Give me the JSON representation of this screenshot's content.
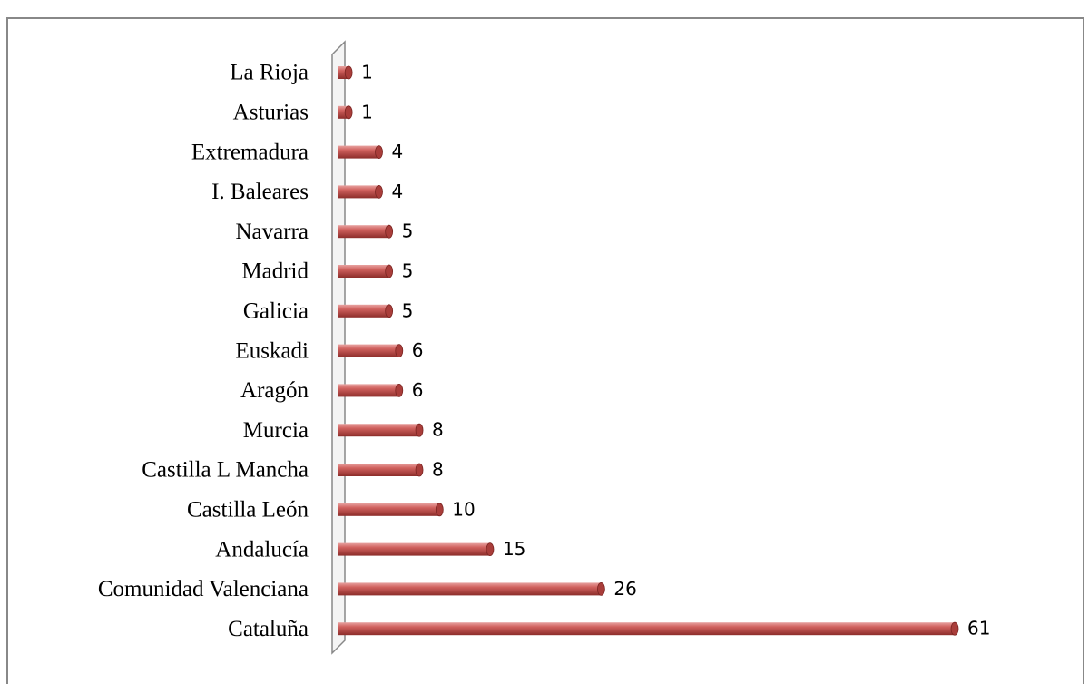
{
  "chart_data": {
    "type": "bar",
    "orientation": "horizontal",
    "categories": [
      "La Rioja",
      "Asturias",
      "Extremadura",
      "I. Baleares",
      "Navarra",
      "Madrid",
      "Galicia",
      "Euskadi",
      "Aragón",
      "Murcia",
      "Castilla L Mancha",
      "Castilla León",
      "Andalucía",
      "Comunidad Valenciana",
      "Cataluña"
    ],
    "values": [
      1,
      1,
      4,
      4,
      5,
      5,
      5,
      6,
      6,
      8,
      8,
      10,
      15,
      26,
      61
    ],
    "color": "#c0504d",
    "data_labels": true
  }
}
